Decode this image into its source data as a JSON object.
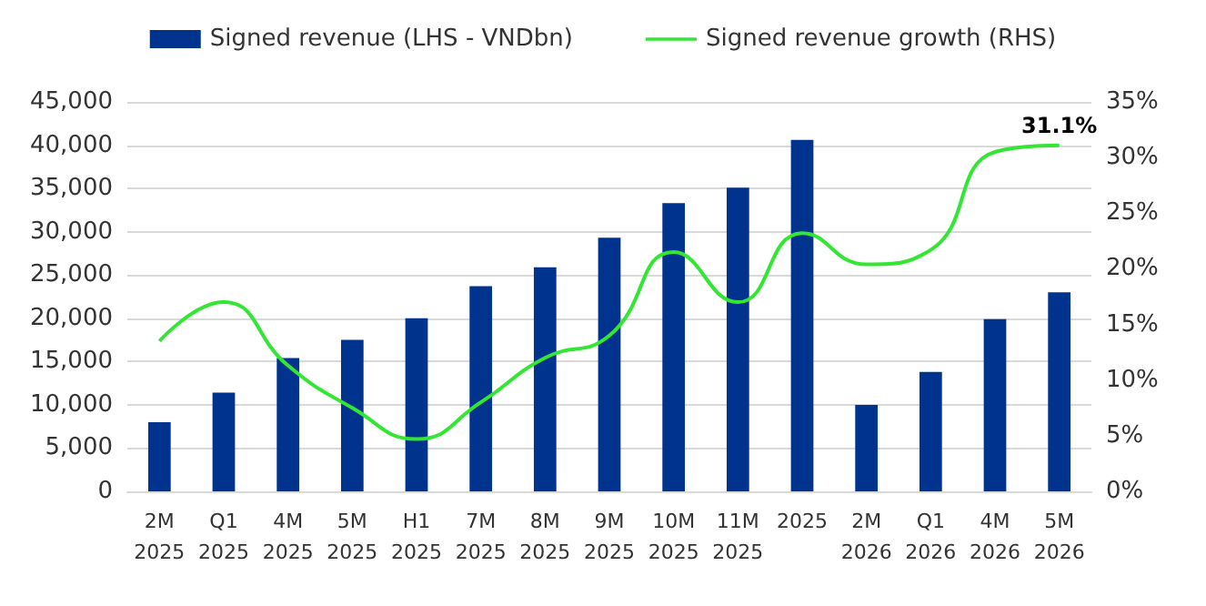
{
  "chart_data": {
    "type": "bar",
    "categories": [
      "2M\n2025",
      "Q1\n2025",
      "4M\n2025",
      "5M\n2025",
      "H1\n2025",
      "7M\n2025",
      "8M\n2025",
      "9M\n2025",
      "10M\n2025",
      "11M\n2025",
      "2025",
      "2M\n2026",
      "Q1\n2026",
      "4M\n2026",
      "5M\n2026"
    ],
    "series": [
      {
        "name": "Signed revenue (LHS - VNDbn)",
        "color": "#00338d",
        "values": [
          8000,
          11400,
          15400,
          17500,
          20000,
          23700,
          25900,
          29300,
          33300,
          35100,
          40600,
          10000,
          13800,
          19900,
          23000
        ]
      },
      {
        "name": "Signed revenue growth (RHS)",
        "type": "line",
        "axis": "y2",
        "color": "#33e633",
        "values": [
          13.5,
          17.0,
          11.3,
          7.5,
          4.7,
          8.0,
          12.0,
          14.0,
          21.5,
          17.0,
          23.2,
          20.4,
          21.7,
          30.5,
          31.1
        ],
        "value_labels": [
          null,
          null,
          null,
          null,
          null,
          null,
          null,
          null,
          null,
          null,
          null,
          null,
          null,
          null,
          "31.1%"
        ]
      }
    ],
    "ylim": [
      0,
      45000
    ],
    "yticks": [
      0,
      {
        "value": 5000,
        "label": "5,000"
      },
      {
        "value": 10000,
        "label": "10,000"
      },
      {
        "value": 15000,
        "label": "15,000"
      },
      {
        "value": 20000,
        "label": "20,000"
      },
      {
        "value": 25000,
        "label": "25,000"
      },
      {
        "value": 30000,
        "label": "30,000"
      },
      {
        "value": 35000,
        "label": "35,000"
      },
      {
        "value": 40000,
        "label": "40,000"
      },
      {
        "value": 45000,
        "label": "45,000"
      }
    ],
    "y2lim": [
      0,
      35
    ],
    "y2ticks": [
      {
        "value": 0,
        "label": "0%"
      },
      {
        "value": 5,
        "label": "5%"
      },
      {
        "value": 10,
        "label": "10%"
      },
      {
        "value": 15,
        "label": "15%"
      },
      {
        "value": 20,
        "label": "20%"
      },
      {
        "value": 25,
        "label": "25%"
      },
      {
        "value": 30,
        "label": "30%"
      },
      {
        "value": 35,
        "label": "35%"
      }
    ],
    "grid": "y",
    "legend": "top"
  }
}
